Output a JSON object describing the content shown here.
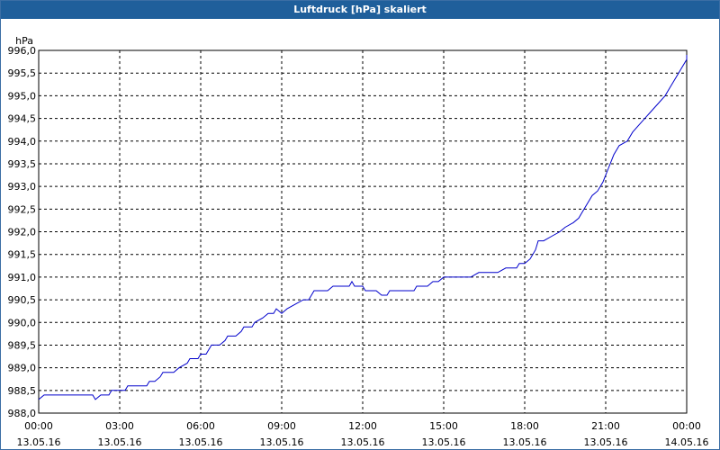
{
  "window": {
    "title": "Luftdruck [hPa] skaliert"
  },
  "chart_data": {
    "type": "line",
    "title": "Luftdruck [hPa] skaliert",
    "ylabel": "hPa",
    "xlabel": "",
    "ylim": [
      988.0,
      996.0
    ],
    "y_ticks": [
      "988,0",
      "988,5",
      "989,0",
      "989,5",
      "990,0",
      "990,5",
      "991,0",
      "991,5",
      "992,0",
      "992,5",
      "993,0",
      "993,5",
      "994,0",
      "994,5",
      "995,0",
      "995,5",
      "996,0"
    ],
    "x_ticks": [
      {
        "time": "00:00",
        "date": "13.05.16"
      },
      {
        "time": "03:00",
        "date": "13.05.16"
      },
      {
        "time": "06:00",
        "date": "13.05.16"
      },
      {
        "time": "09:00",
        "date": "13.05.16"
      },
      {
        "time": "12:00",
        "date": "13.05.16"
      },
      {
        "time": "15:00",
        "date": "13.05.16"
      },
      {
        "time": "18:00",
        "date": "13.05.16"
      },
      {
        "time": "21:00",
        "date": "13.05.16"
      },
      {
        "time": "00:00",
        "date": "14.05.16"
      }
    ],
    "x_unit": "hours since 13.05.16 00:00",
    "xlim": [
      0,
      24
    ],
    "grid": true,
    "line_color": "#0000cc",
    "series": [
      {
        "values": [
          [
            0.0,
            988.3
          ],
          [
            0.2,
            988.4
          ],
          [
            1.0,
            988.4
          ],
          [
            2.0,
            988.4
          ],
          [
            2.1,
            988.3
          ],
          [
            2.3,
            988.4
          ],
          [
            2.6,
            988.4
          ],
          [
            2.7,
            988.5
          ],
          [
            3.2,
            988.5
          ],
          [
            3.3,
            988.6
          ],
          [
            4.0,
            988.6
          ],
          [
            4.1,
            988.7
          ],
          [
            4.3,
            988.7
          ],
          [
            4.5,
            988.8
          ],
          [
            4.6,
            988.9
          ],
          [
            5.0,
            988.9
          ],
          [
            5.2,
            989.0
          ],
          [
            5.5,
            989.1
          ],
          [
            5.6,
            989.2
          ],
          [
            5.9,
            989.2
          ],
          [
            6.0,
            989.3
          ],
          [
            6.2,
            989.3
          ],
          [
            6.4,
            989.5
          ],
          [
            6.7,
            989.5
          ],
          [
            6.9,
            989.6
          ],
          [
            7.0,
            989.7
          ],
          [
            7.3,
            989.7
          ],
          [
            7.5,
            989.8
          ],
          [
            7.6,
            989.9
          ],
          [
            7.9,
            989.9
          ],
          [
            8.0,
            990.0
          ],
          [
            8.3,
            990.1
          ],
          [
            8.5,
            990.2
          ],
          [
            8.7,
            990.2
          ],
          [
            8.8,
            990.3
          ],
          [
            9.0,
            990.2
          ],
          [
            9.2,
            990.3
          ],
          [
            9.5,
            990.4
          ],
          [
            9.8,
            990.5
          ],
          [
            10.0,
            990.5
          ],
          [
            10.2,
            990.7
          ],
          [
            10.7,
            990.7
          ],
          [
            10.9,
            990.8
          ],
          [
            11.5,
            990.8
          ],
          [
            11.6,
            990.9
          ],
          [
            11.7,
            990.8
          ],
          [
            12.0,
            990.8
          ],
          [
            12.1,
            990.7
          ],
          [
            12.5,
            990.7
          ],
          [
            12.7,
            990.6
          ],
          [
            12.9,
            990.6
          ],
          [
            13.0,
            990.7
          ],
          [
            13.9,
            990.7
          ],
          [
            14.0,
            990.8
          ],
          [
            14.4,
            990.8
          ],
          [
            14.6,
            990.9
          ],
          [
            14.8,
            990.9
          ],
          [
            15.0,
            991.0
          ],
          [
            16.0,
            991.0
          ],
          [
            16.3,
            991.1
          ],
          [
            17.0,
            991.1
          ],
          [
            17.3,
            991.2
          ],
          [
            17.7,
            991.2
          ],
          [
            17.8,
            991.3
          ],
          [
            18.0,
            991.3
          ],
          [
            18.2,
            991.4
          ],
          [
            18.4,
            991.6
          ],
          [
            18.5,
            991.8
          ],
          [
            18.7,
            991.8
          ],
          [
            19.0,
            991.9
          ],
          [
            19.3,
            992.0
          ],
          [
            19.5,
            992.1
          ],
          [
            19.8,
            992.2
          ],
          [
            20.0,
            992.3
          ],
          [
            20.2,
            992.5
          ],
          [
            20.3,
            992.6
          ],
          [
            20.5,
            992.8
          ],
          [
            20.7,
            992.9
          ],
          [
            20.9,
            993.1
          ],
          [
            21.1,
            993.4
          ],
          [
            21.3,
            993.7
          ],
          [
            21.5,
            993.9
          ],
          [
            21.8,
            994.0
          ],
          [
            22.0,
            994.2
          ],
          [
            22.3,
            994.4
          ],
          [
            22.6,
            994.6
          ],
          [
            22.9,
            994.8
          ],
          [
            23.2,
            995.0
          ],
          [
            23.4,
            995.2
          ],
          [
            23.6,
            995.4
          ],
          [
            23.8,
            995.6
          ],
          [
            24.0,
            995.8
          ],
          [
            24.2,
            995.9
          ]
        ]
      }
    ]
  }
}
